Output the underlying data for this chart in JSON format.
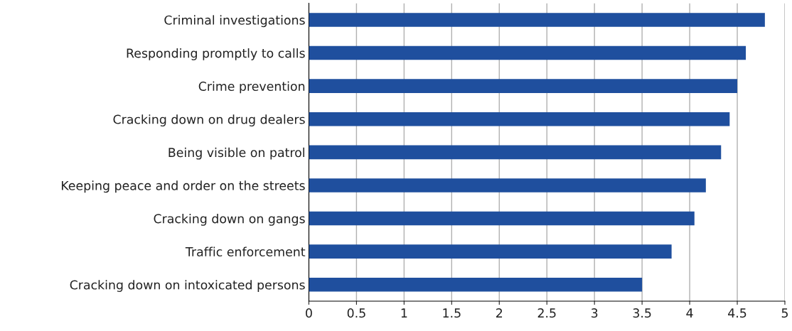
{
  "chart_data": {
    "type": "bar",
    "orientation": "horizontal",
    "categories": [
      "Criminal investigations",
      "Responding promptly to calls",
      "Crime prevention",
      "Cracking down on drug dealers",
      "Being visible on patrol",
      "Keeping peace and order on the streets",
      "Cracking down on gangs",
      "Traffic enforcement",
      "Cracking down on intoxicated persons"
    ],
    "values": [
      4.79,
      4.59,
      4.5,
      4.42,
      4.33,
      4.17,
      4.05,
      3.81,
      3.5
    ],
    "color": "#1f4f9e",
    "xlim": [
      0,
      5
    ],
    "xticks": [
      0,
      0.5,
      1,
      1.5,
      2,
      2.5,
      3,
      3.5,
      4,
      4.5,
      5
    ],
    "grid": "x"
  }
}
